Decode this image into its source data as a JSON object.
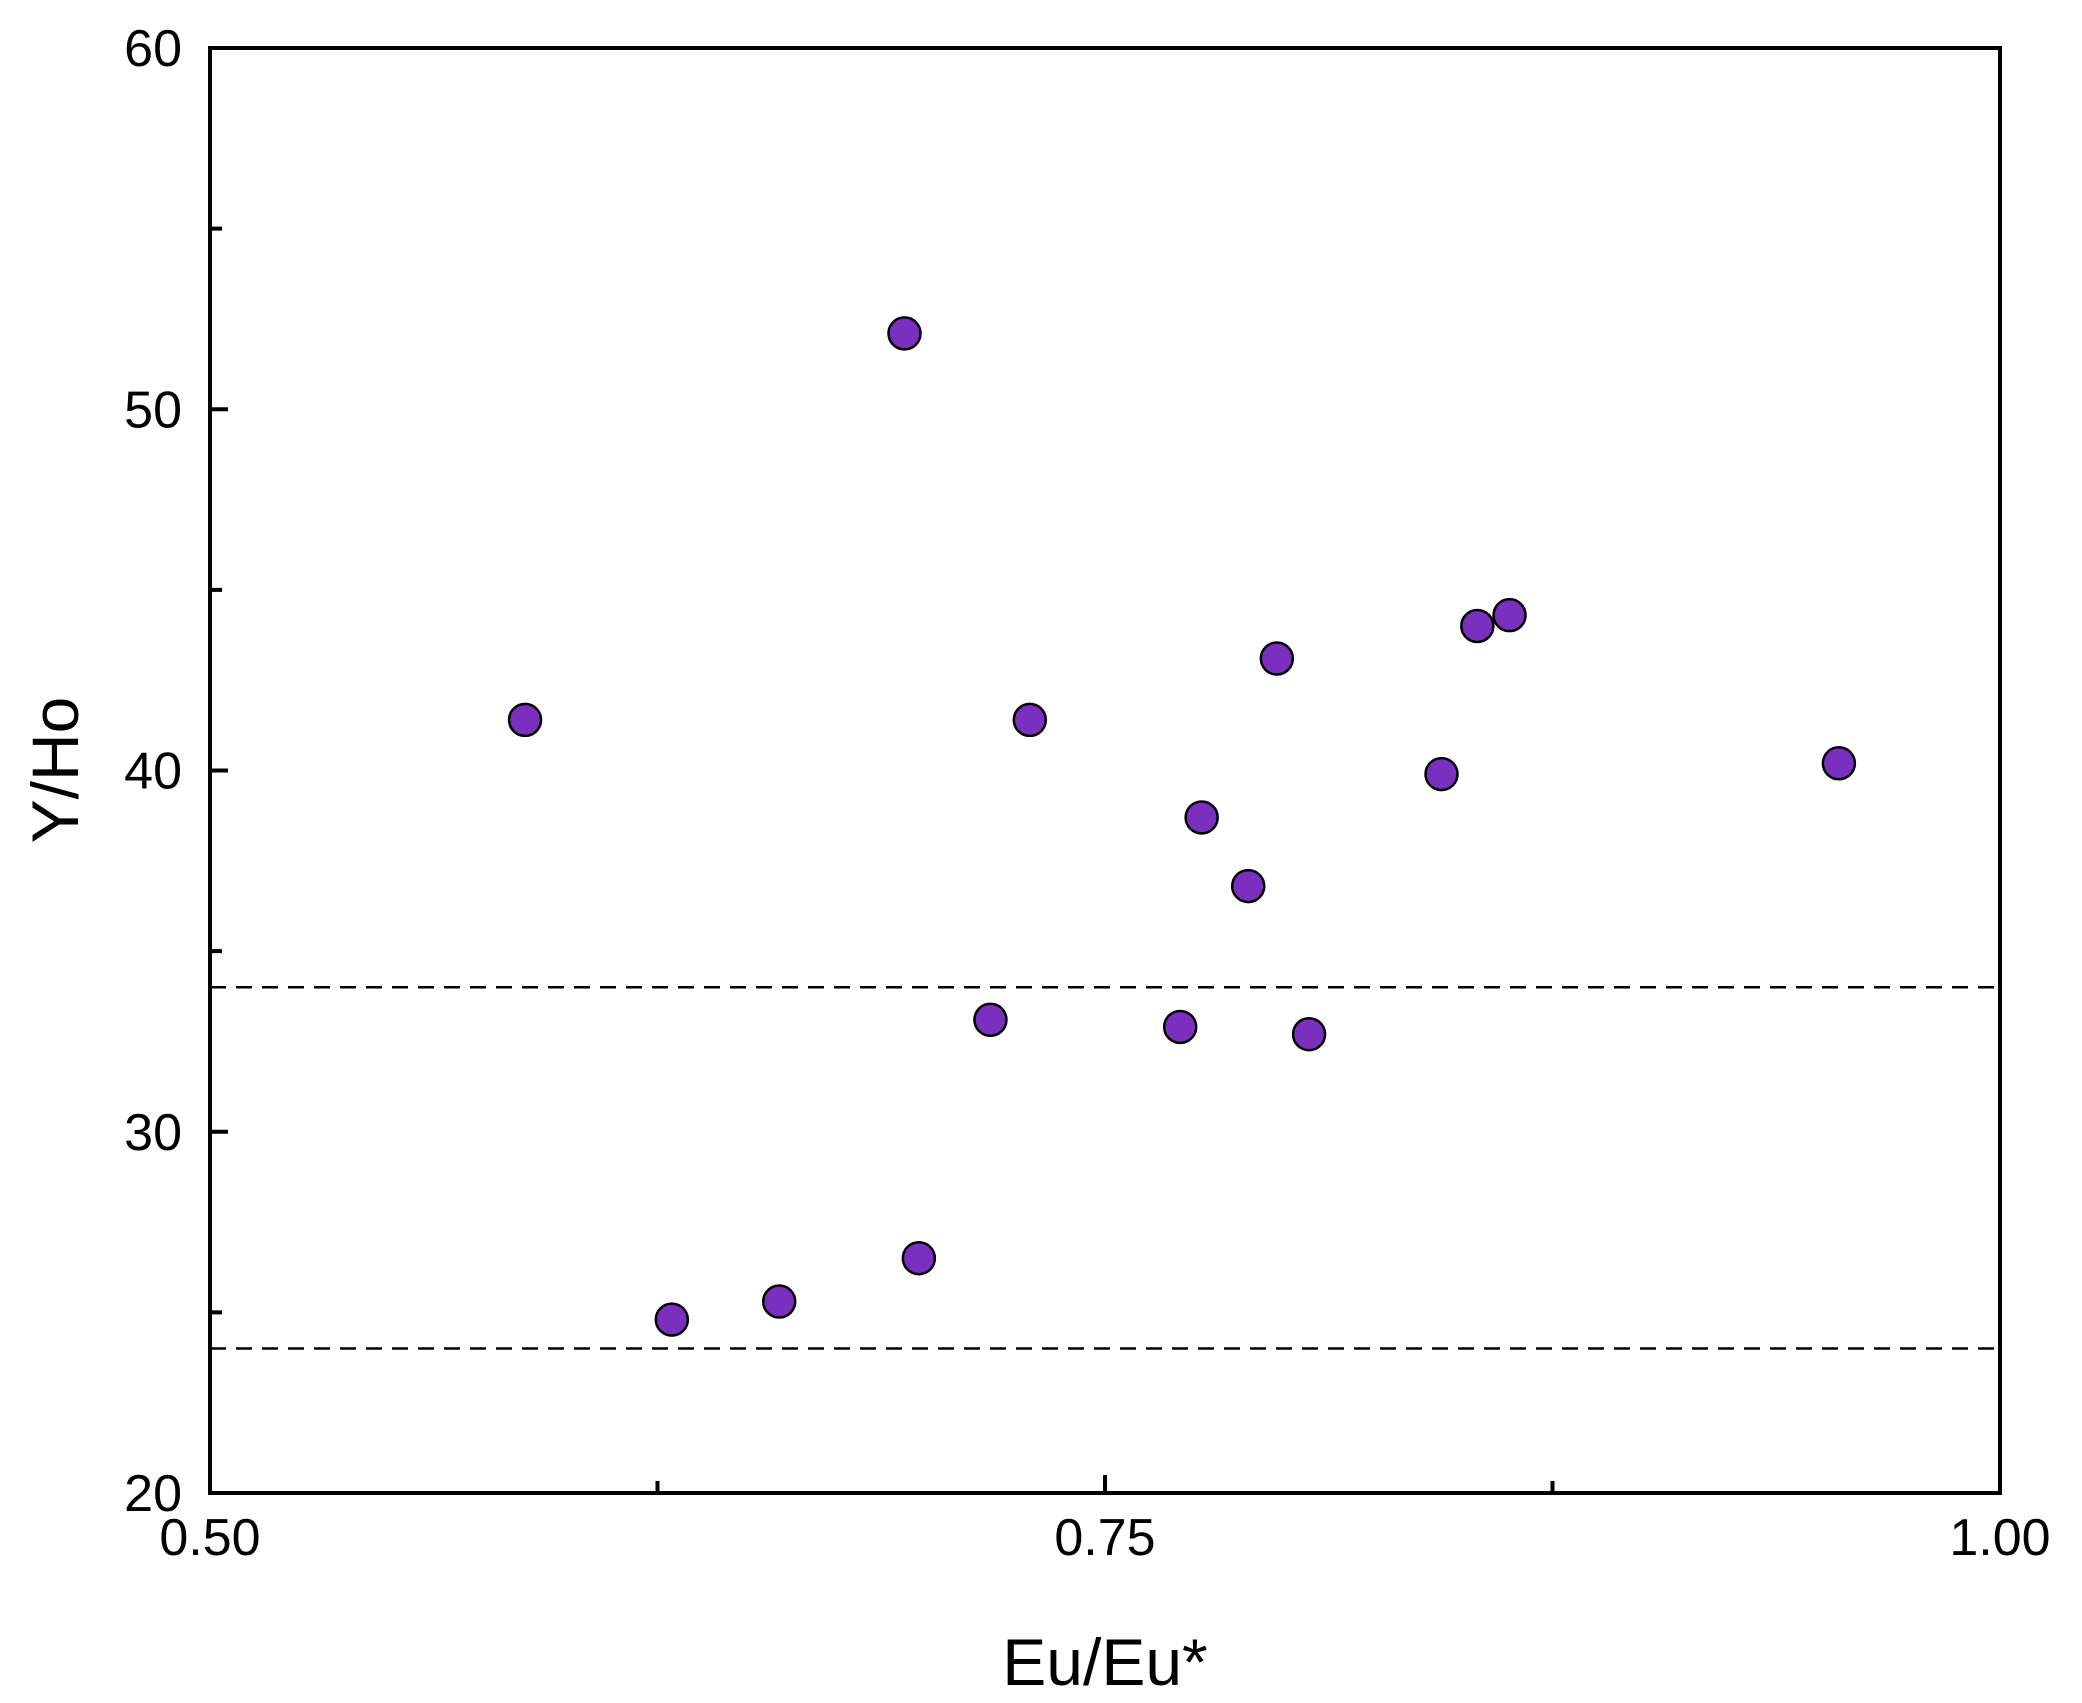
{
  "chart_data": {
    "type": "scatter",
    "xlabel": "Eu/Eu*",
    "ylabel": "Y/Ho",
    "xlim": [
      0.5,
      1.0
    ],
    "ylim": [
      20,
      60
    ],
    "x_ticks": [
      0.5,
      0.625,
      0.75,
      0.875,
      1.0
    ],
    "x_tick_labels": [
      "0.50",
      "",
      "0.75",
      "",
      "1.00"
    ],
    "y_ticks": [
      20,
      25,
      30,
      35,
      40,
      45,
      50,
      55,
      60
    ],
    "y_tick_labels": [
      "20",
      "",
      "30",
      "",
      "40",
      "",
      "50",
      "",
      "60"
    ],
    "grid": false,
    "reference_lines": [
      {
        "axis": "y",
        "value": 34,
        "style": "dashed"
      },
      {
        "axis": "y",
        "value": 24,
        "style": "dashed"
      }
    ],
    "marker_color": "#7B2FBE",
    "marker_edge_color": "#000000",
    "points": [
      {
        "x": 0.588,
        "y": 41.4
      },
      {
        "x": 0.629,
        "y": 24.8
      },
      {
        "x": 0.659,
        "y": 25.3
      },
      {
        "x": 0.694,
        "y": 52.1
      },
      {
        "x": 0.698,
        "y": 26.5
      },
      {
        "x": 0.718,
        "y": 33.1
      },
      {
        "x": 0.729,
        "y": 41.4
      },
      {
        "x": 0.771,
        "y": 32.9
      },
      {
        "x": 0.777,
        "y": 38.7
      },
      {
        "x": 0.79,
        "y": 36.8
      },
      {
        "x": 0.798,
        "y": 43.1
      },
      {
        "x": 0.807,
        "y": 32.7
      },
      {
        "x": 0.844,
        "y": 39.9
      },
      {
        "x": 0.854,
        "y": 44.0
      },
      {
        "x": 0.863,
        "y": 44.3
      },
      {
        "x": 0.955,
        "y": 40.2
      }
    ]
  }
}
